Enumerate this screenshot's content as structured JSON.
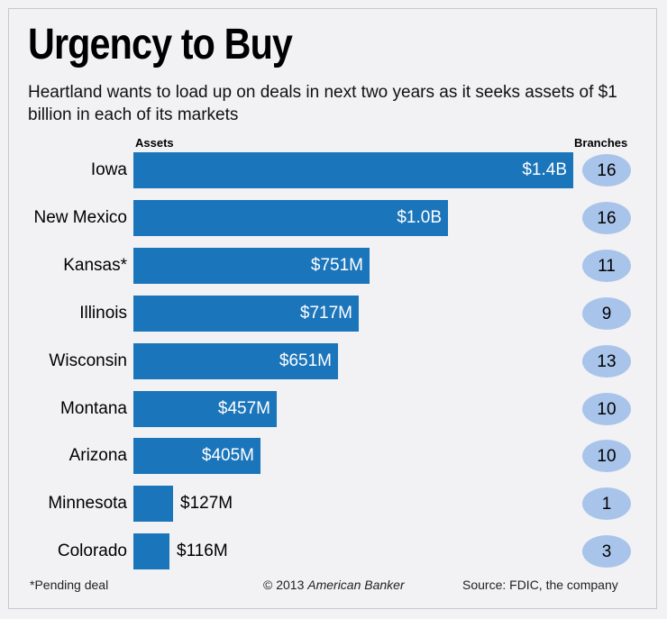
{
  "title": "Urgency to Buy",
  "subtitle": "Heartland wants to load up on deals in next two years as it seeks assets of $1 billion in each of its markets",
  "column_headers": {
    "assets": "Assets",
    "branches": "Branches"
  },
  "footer": {
    "note": "*Pending deal",
    "copyright": "© 2013",
    "publisher": "American Banker",
    "source": "Source: FDIC, the company"
  },
  "colors": {
    "bar": "#1b75bb",
    "badge": "#a9c4ea",
    "background": "#f2f1f4"
  },
  "chart_data": {
    "type": "bar",
    "orientation": "horizontal",
    "title": "Urgency to Buy",
    "xlabel": "Assets",
    "unit": "USD millions",
    "xlim": [
      0,
      1400
    ],
    "categories": [
      "Iowa",
      "New Mexico",
      "Kansas*",
      "Illinois",
      "Wisconsin",
      "Montana",
      "Arizona",
      "Minnesota",
      "Colorado"
    ],
    "values": [
      1400,
      1000,
      751,
      717,
      651,
      457,
      405,
      127,
      116
    ],
    "data_labels": [
      "$1.4B",
      "$1.0B",
      "$751M",
      "$717M",
      "$651M",
      "$457M",
      "$405M",
      "$127M",
      "$116M"
    ],
    "branches": [
      16,
      16,
      11,
      9,
      13,
      10,
      10,
      1,
      3
    ],
    "series": [
      {
        "name": "Assets",
        "values": [
          1400,
          1000,
          751,
          717,
          651,
          457,
          405,
          127,
          116
        ]
      },
      {
        "name": "Branches",
        "values": [
          16,
          16,
          11,
          9,
          13,
          10,
          10,
          1,
          3
        ]
      }
    ]
  }
}
